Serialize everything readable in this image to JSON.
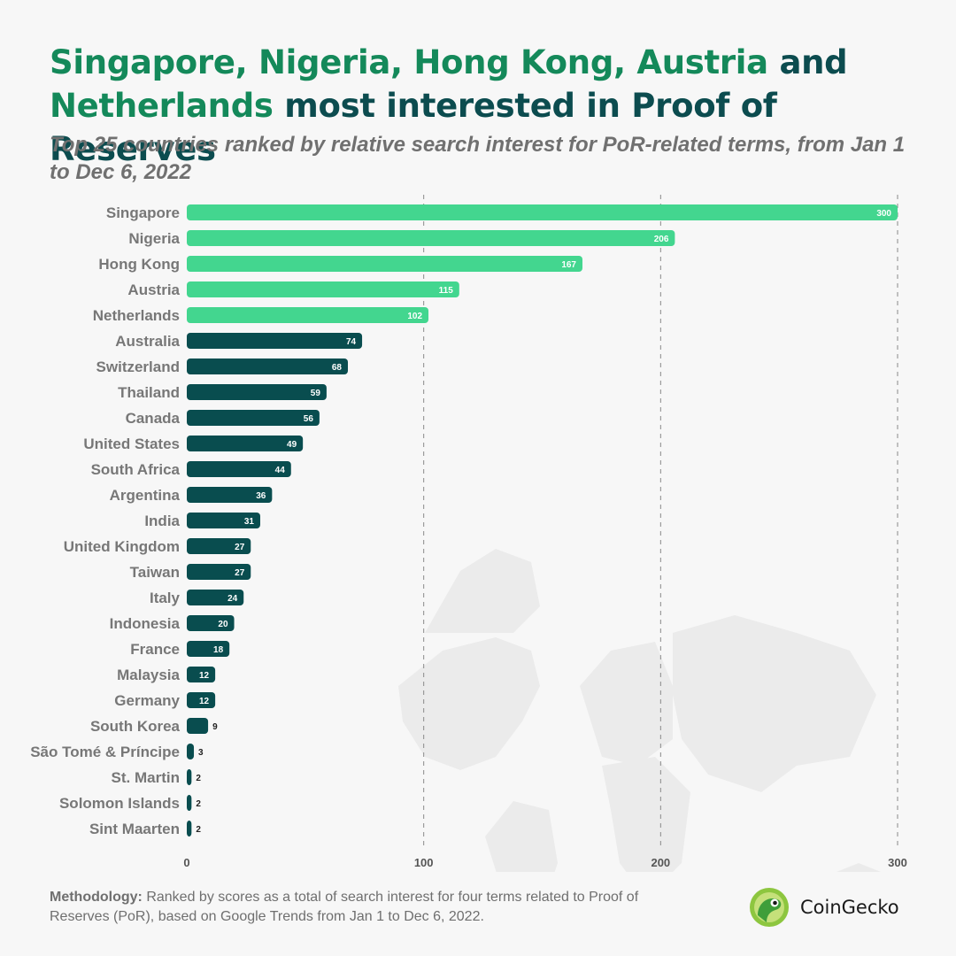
{
  "title": {
    "highlight": "Singapore, Nigeria, Hong Kong, Austria",
    "mid": " and ",
    "highlight2": "Netherlands",
    "rest": " most interested in Proof of Reserves"
  },
  "subtitle": "Top 25 countries ranked by relative search interest for PoR-related terms, from Jan 1 to Dec 6, 2022",
  "footer": {
    "label": "Methodology:",
    "text": " Ranked by scores as a total of search interest for four terms related to Proof of Reserves (PoR), based on Google Trends from Jan 1 to Dec 6, 2022."
  },
  "brand": {
    "name": "CoinGecko",
    "icon": "gecko-logo-icon"
  },
  "colors": {
    "highlight": "#43d68f",
    "default": "#094d4f",
    "title_highlight": "#14895a",
    "title": "#0c4c4f"
  },
  "chart_data": {
    "type": "bar",
    "orientation": "horizontal",
    "categories": [
      "Singapore",
      "Nigeria",
      "Hong Kong",
      "Austria",
      "Netherlands",
      "Australia",
      "Switzerland",
      "Thailand",
      "Canada",
      "United States",
      "South Africa",
      "Argentina",
      "India",
      "United Kingdom",
      "Taiwan",
      "Italy",
      "Indonesia",
      "France",
      "Malaysia",
      "Germany",
      "South Korea",
      "São Tomé & Príncipe",
      "St. Martin",
      "Solomon Islands",
      "Sint Maarten"
    ],
    "values": [
      300,
      206,
      167,
      115,
      102,
      74,
      68,
      59,
      56,
      49,
      44,
      36,
      31,
      27,
      27,
      24,
      20,
      18,
      12,
      12,
      9,
      3,
      2,
      2,
      2
    ],
    "highlighted_count": 5,
    "xlim": [
      0,
      300
    ],
    "xticks": [
      0,
      100,
      200,
      300
    ],
    "grid": "vertical dashed"
  }
}
